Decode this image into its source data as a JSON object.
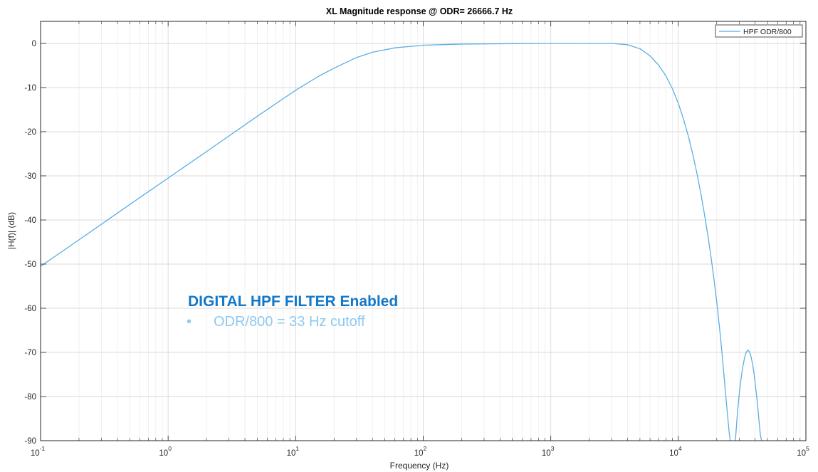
{
  "chart_data": {
    "type": "line",
    "title": "XL Magnitude response @ ODR= 26666.7 Hz",
    "xlabel": "Frequency (Hz)",
    "ylabel": "|H(f)| (dB)",
    "xscale": "log",
    "xlim": [
      0.1,
      100000
    ],
    "ylim": [
      -90,
      5
    ],
    "xticks": [
      0.1,
      1,
      10,
      100,
      1000,
      10000,
      100000
    ],
    "xtick_labels": [
      {
        "base": "10",
        "exp": "-1"
      },
      {
        "base": "10",
        "exp": "0"
      },
      {
        "base": "10",
        "exp": "1"
      },
      {
        "base": "10",
        "exp": "2"
      },
      {
        "base": "10",
        "exp": "3"
      },
      {
        "base": "10",
        "exp": "4"
      },
      {
        "base": "10",
        "exp": "5"
      }
    ],
    "yticks": [
      0,
      -10,
      -20,
      -30,
      -40,
      -50,
      -60,
      -70,
      -80,
      -90
    ],
    "ytick_labels": [
      "0",
      "-10",
      "-20",
      "-30",
      "-40",
      "-50",
      "-60",
      "-70",
      "-80",
      "-90"
    ],
    "grid": true,
    "legend_position": "top-right",
    "series": [
      {
        "name": "HPF ODR/800",
        "color": "#5aaee4",
        "segments": [
          {
            "x": [
              0.1,
              0.2,
              0.5,
              1,
              2,
              5,
              10,
              15,
              20,
              30,
              40,
              60,
              100,
              200,
              500,
              1000,
              2000,
              3000,
              4000,
              5000,
              6000,
              7000,
              8000,
              9000,
              10000,
              11000,
              12000,
              13000,
              14000,
              15000,
              16000,
              17000,
              18000,
              19000,
              20000,
              21000,
              22000,
              23000,
              24000,
              25000,
              25500
            ],
            "y": [
              -50.5,
              -44.5,
              -36.5,
              -30.5,
              -24.5,
              -16.5,
              -10.6,
              -7.5,
              -5.6,
              -3.2,
              -2.0,
              -1.0,
              -0.4,
              -0.15,
              -0.05,
              -0.02,
              0,
              0,
              -0.3,
              -1.2,
              -2.8,
              -4.9,
              -7.4,
              -10.3,
              -13.6,
              -17.2,
              -21.1,
              -25.2,
              -29.5,
              -34.0,
              -38.6,
              -43.3,
              -48.2,
              -53.3,
              -58.6,
              -64.2,
              -70.2,
              -76.5,
              -82.5,
              -88,
              -90
            ]
          },
          {
            "x": [
              28000,
              29000,
              30000,
              31000,
              32000,
              33000,
              34000,
              35000,
              36000,
              37000,
              38000,
              39000,
              40000,
              41000,
              42000,
              43000,
              44000,
              45000
            ],
            "y": [
              -90,
              -84,
              -79.5,
              -76,
              -73.3,
              -71.3,
              -70,
              -69.5,
              -69.8,
              -70.8,
              -72.3,
              -74.3,
              -76.8,
              -79.6,
              -82.6,
              -85.8,
              -88.8,
              -90
            ]
          }
        ]
      }
    ]
  },
  "annotation": {
    "heading": "DIGITAL HPF FILTER Enabled",
    "bullet_symbol": "•",
    "bullet_text": "ODR/800 = 33 Hz cutoff",
    "heading_color": "#1478c8",
    "bullet_color": "#8ec9ee"
  }
}
